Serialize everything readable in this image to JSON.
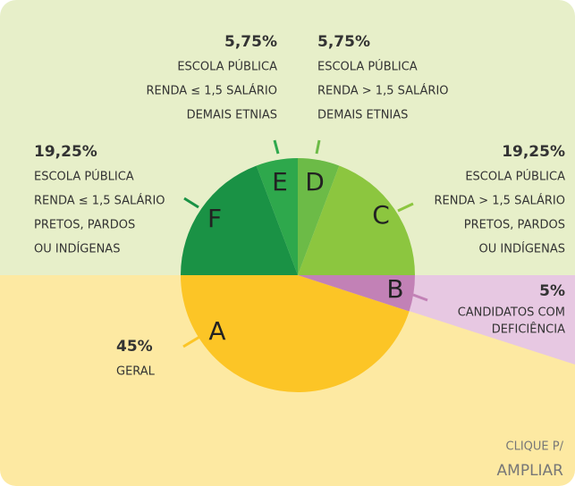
{
  "chart_data": {
    "type": "pie",
    "categories": [
      "A",
      "B",
      "C",
      "D",
      "E",
      "F"
    ],
    "values": [
      45,
      5,
      19.25,
      5.75,
      5.75,
      19.25
    ],
    "value_labels": [
      "45%",
      "5%",
      "19,25%",
      "5,75%",
      "5,75%",
      "19,25%"
    ],
    "colors": [
      "#fcc526",
      "#c281b6",
      "#8cc63f",
      "#6cbb47",
      "#2ea84c",
      "#1a9245"
    ],
    "descriptions": [
      [
        "GERAL"
      ],
      [
        "CANDIDATOS COM",
        "DEFICIÊNCIA"
      ],
      [
        "ESCOLA PÚBLICA",
        "RENDA > 1,5 SALÁRIO",
        "PRETOS, PARDOS",
        "OU INDÍGENAS"
      ],
      [
        "ESCOLA PÚBLICA",
        "RENDA > 1,5 SALÁRIO",
        "DEMAIS ETNIAS"
      ],
      [
        "ESCOLA PÚBLICA",
        "RENDA ≤ 1,5 SALÁRIO",
        "DEMAIS ETNIAS"
      ],
      [
        "ESCOLA PÚBLICA",
        "RENDA ≤ 1,5 SALÁRIO",
        "PRETOS, PARDOS",
        "OU INDÍGENAS"
      ]
    ]
  },
  "button": {
    "line1": "CLIQUE P/",
    "line2": "AMPLIAR"
  }
}
